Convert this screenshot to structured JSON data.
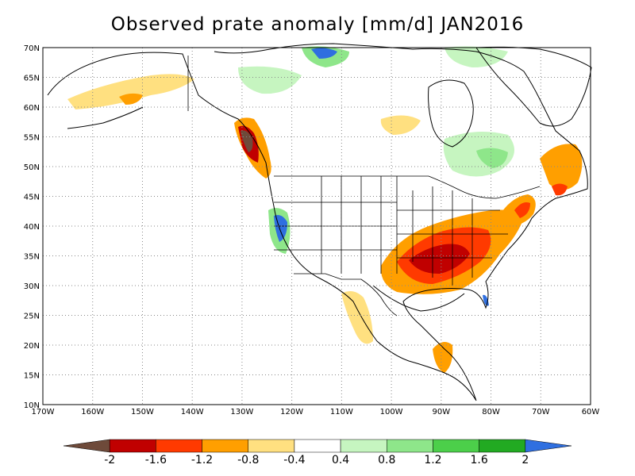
{
  "title": "Observed prate anomaly [mm/d] JAN2016",
  "lat_labels": [
    "70N",
    "65N",
    "60N",
    "55N",
    "50N",
    "45N",
    "40N",
    "35N",
    "30N",
    "25N",
    "20N",
    "15N",
    "10N"
  ],
  "lon_labels": [
    "170W",
    "160W",
    "150W",
    "140W",
    "130W",
    "120W",
    "110W",
    "100W",
    "90W",
    "80W",
    "70W",
    "60W"
  ],
  "colorbar": {
    "labels": [
      "-2",
      "-1.6",
      "-1.2",
      "-0.8",
      "-0.4",
      "0.4",
      "0.8",
      "1.2",
      "1.6",
      "2"
    ],
    "colors": [
      "#6e4a3a",
      "#c00000",
      "#ff3a00",
      "#ff9f00",
      "#ffe080",
      "#ffffff",
      "#c6f5c0",
      "#8ee68a",
      "#4ccf4a",
      "#22aa22",
      "#2f6fe0"
    ]
  },
  "palette": {
    "brown": "#6e4a3a",
    "dark_red": "#c00000",
    "red": "#ff3a00",
    "orange": "#ff9f00",
    "yellow": "#ffe080",
    "light_green": "#c6f5c0",
    "mid_green": "#8ee68a",
    "green": "#4ccf4a",
    "dark_green": "#22aa22",
    "blue": "#2f6fe0"
  }
}
